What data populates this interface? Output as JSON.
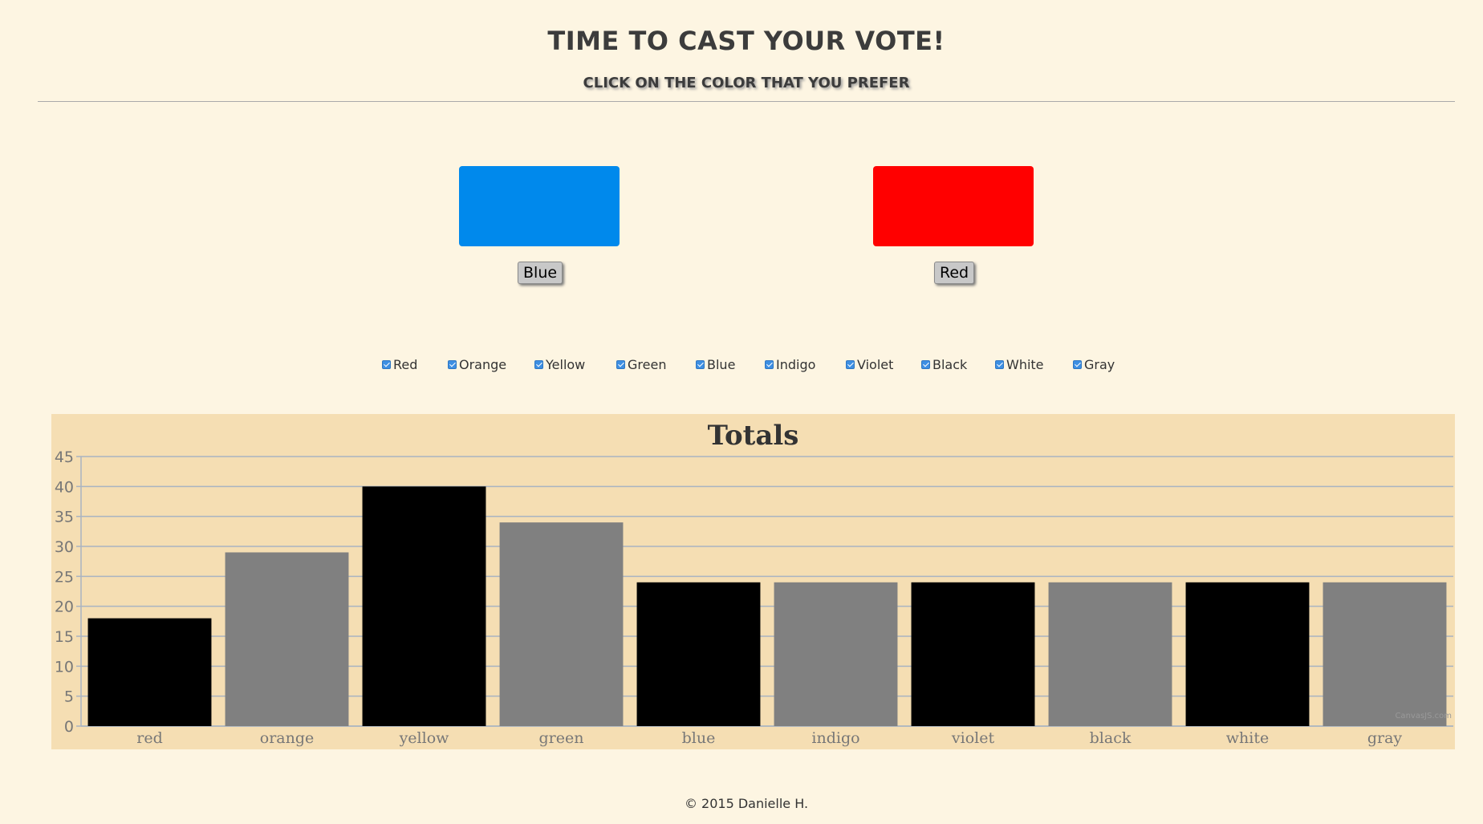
{
  "header": {
    "title": "TIME TO CAST YOUR VOTE!",
    "subtitle": "CLICK ON THE COLOR THAT YOU PREFER"
  },
  "vote": {
    "left": {
      "label": "Blue",
      "color": "#0089ec"
    },
    "right": {
      "label": "Red",
      "color": "#ff0000"
    }
  },
  "filters": [
    "Red",
    "Orange",
    "Yellow",
    "Green",
    "Blue",
    "Indigo",
    "Violet",
    "Black",
    "White",
    "Gray"
  ],
  "chart_data": {
    "type": "bar",
    "title": "Totals",
    "categories": [
      "red",
      "orange",
      "yellow",
      "green",
      "blue",
      "indigo",
      "violet",
      "black",
      "white",
      "gray"
    ],
    "values": [
      18,
      29,
      40,
      34,
      24,
      24,
      24,
      24,
      24,
      24
    ],
    "bar_colors": [
      "#000000",
      "#808080",
      "#000000",
      "#808080",
      "#000000",
      "#808080",
      "#000000",
      "#808080",
      "#000000",
      "#808080"
    ],
    "ylim": [
      0,
      45
    ],
    "yticks": [
      0,
      5,
      10,
      15,
      20,
      25,
      30,
      35,
      40,
      45
    ],
    "grid": true,
    "background": "#f5deb3",
    "watermark": "CanvasJS.com"
  },
  "footer": {
    "text": "© 2015 Danielle H."
  }
}
